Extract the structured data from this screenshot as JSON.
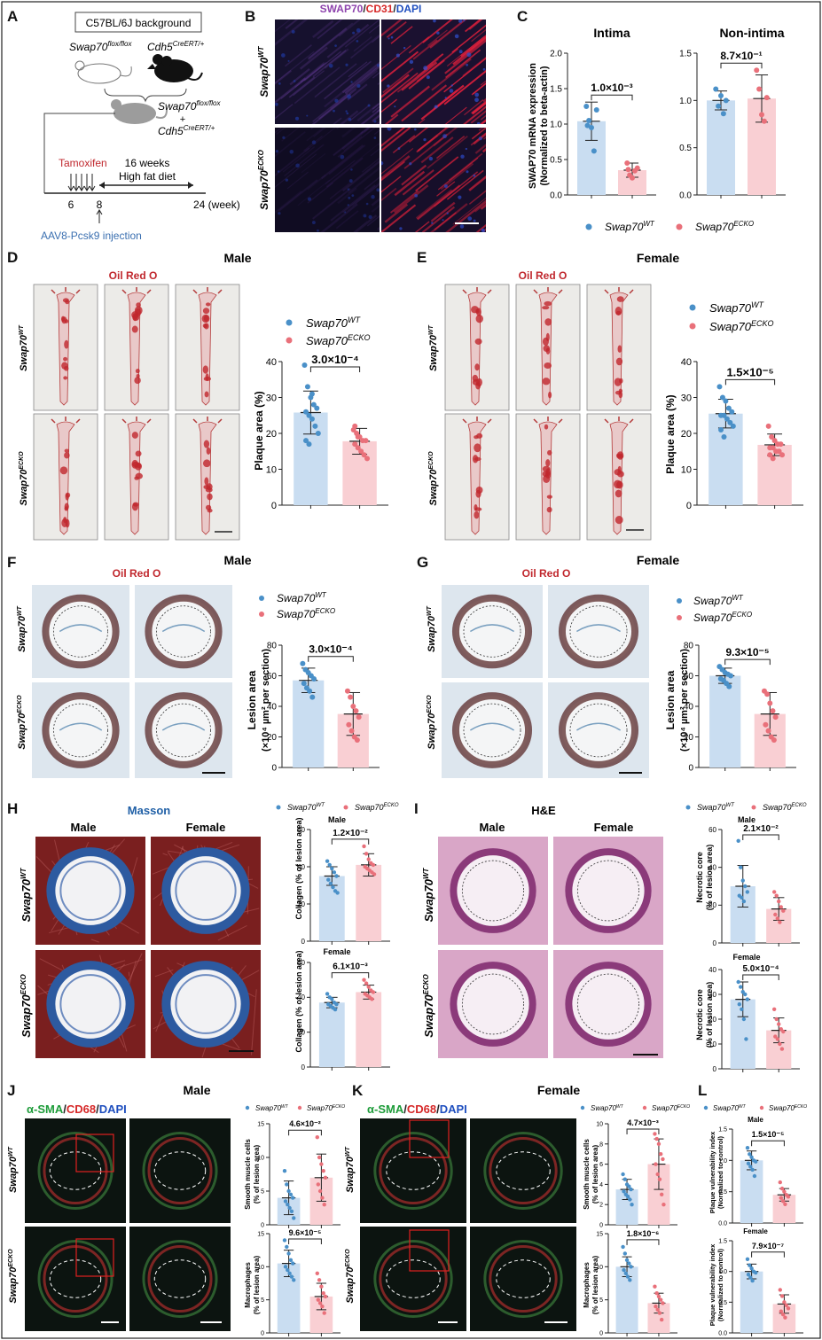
{
  "panels": [
    "A",
    "B",
    "C",
    "D",
    "E",
    "F",
    "G",
    "H",
    "I",
    "J",
    "K",
    "L"
  ],
  "panel_a": {
    "background_box": "C57BL/6J background",
    "mouse1_gene": "Swap70",
    "mouse1_sup": "flox/flox",
    "mouse2_gene": "Cdh5",
    "mouse2_sup": "CreERT/+",
    "cross_gene1": "Swap70",
    "cross_sup1": "flox/flox",
    "plus": "+",
    "cross_gene2": "Cdh5",
    "cross_sup2": "CreERT/+",
    "tamoxifen": "Tamoxifen",
    "weeks_line1": "16 weeks",
    "weeks_line2": "High fat diet",
    "t6": "6",
    "t8": "8",
    "t24": "24 (week)",
    "injection": "AAV8-Pcsk9 injection"
  },
  "panel_b": {
    "title_swap": "SWAP70",
    "slash1": "/",
    "title_cd31": "CD31",
    "slash2": "/",
    "title_dapi": "DAPI",
    "row1": "Swap70",
    "row1_sup": "WT",
    "row2": "Swap70",
    "row2_sup": "ECKO"
  },
  "panel_c": {
    "title_left": "Intima",
    "title_right": "Non-intima",
    "ylabel1": "SWAP70 mRNA expression",
    "ylabel2": "(Normalized to beta-actin)",
    "p_left": "1.0×10⁻³",
    "p_right": "8.7×10⁻¹",
    "legend_wt": "Swap70",
    "legend_wt_sup": "WT",
    "legend_ko": "Swap70",
    "legend_ko_sup": "ECKO"
  },
  "panel_d": {
    "title": "Male",
    "stain": "Oil Red O",
    "row1": "Swap70",
    "row1_sup": "WT",
    "row2": "Swap70",
    "row2_sup": "ECKO",
    "legend_wt": "Swap70",
    "legend_wt_sup": "WT",
    "legend_ko": "Swap70",
    "legend_ko_sup": "ECKO",
    "ylabel": "Plaque area (%)",
    "p": "3.0×10⁻⁴"
  },
  "panel_e": {
    "title": "Female",
    "stain": "Oil Red O",
    "row1": "Swap70",
    "row1_sup": "WT",
    "row2": "Swap70",
    "row2_sup": "ECKO",
    "legend_wt": "Swap70",
    "legend_wt_sup": "WT",
    "legend_ko": "Swap70",
    "legend_ko_sup": "ECKO",
    "ylabel": "Plaque area (%)",
    "p": "1.5×10⁻⁵"
  },
  "panel_f": {
    "title": "Male",
    "stain": "Oil Red O",
    "row1": "Swap70",
    "row1_sup": "WT",
    "row2": "Swap70",
    "row2_sup": "ECKO",
    "legend_wt": "Swap70",
    "legend_wt_sup": "WT",
    "legend_ko": "Swap70",
    "legend_ko_sup": "ECKO",
    "ylabel1": "Lesion area",
    "ylabel2": "(×10⁴ µm² per section)",
    "p": "3.0×10⁻⁴"
  },
  "panel_g": {
    "title": "Female",
    "stain": "Oil Red O",
    "row1": "Swap70",
    "row1_sup": "WT",
    "row2": "Swap70",
    "row2_sup": "ECKO",
    "legend_wt": "Swap70",
    "legend_wt_sup": "WT",
    "legend_ko": "Swap70",
    "legend_ko_sup": "ECKO",
    "ylabel1": "Lesion area",
    "ylabel2": "(×10⁴ µm² per section)",
    "p": "9.3×10⁻⁵"
  },
  "panel_h": {
    "stain": "Masson",
    "col1": "Male",
    "col2": "Female",
    "row1": "Swap70",
    "row1_sup": "WT",
    "row2": "Swap70",
    "row2_sup": "ECKO",
    "legend_wt": "Swap70",
    "legend_wt_sup": "WT",
    "legend_ko": "Swap70",
    "legend_ko_sup": "ECKO",
    "sub1": "Male",
    "sub2": "Female",
    "ylabel": "Collagen (% of lesion area)",
    "p1": "1.2×10⁻²",
    "p2": "6.1×10⁻³"
  },
  "panel_i": {
    "stain": "H&E",
    "col1": "Male",
    "col2": "Female",
    "row1": "Swap70",
    "row1_sup": "WT",
    "row2": "Swap70",
    "row2_sup": "ECKO",
    "legend_wt": "Swap70",
    "legend_wt_sup": "WT",
    "legend_ko": "Swap70",
    "legend_ko_sup": "ECKO",
    "sub1": "Male",
    "sub2": "Female",
    "ylabel1": "Necrotic core",
    "ylabel2": "(% of lesion area)",
    "p1": "2.1×10⁻²",
    "p2": "5.0×10⁻⁴"
  },
  "panel_j": {
    "title": "Male",
    "stain_sma": "α-SMA",
    "slash1": "/",
    "stain_cd68": "CD68",
    "slash2": "/",
    "stain_dapi": "DAPI",
    "row1": "Swap70",
    "row1_sup": "WT",
    "row2": "Swap70",
    "row2_sup": "ECKO",
    "legend_wt": "Swap70",
    "legend_wt_sup": "WT",
    "legend_ko": "Swap70",
    "legend_ko_sup": "ECKO",
    "ylabel_a1": "Smooth muscle cells",
    "ylabel_a2": "(% of lesion area)",
    "ylabel_b1": "Macrophages",
    "ylabel_b2": "(% of lesion area)",
    "p1": "4.6×10⁻²",
    "p2": "9.6×10⁻⁵"
  },
  "panel_k": {
    "title": "Female",
    "stain_sma": "α-SMA",
    "slash1": "/",
    "stain_cd68": "CD68",
    "slash2": "/",
    "stain_dapi": "DAPI",
    "row1": "Swap70",
    "row1_sup": "WT",
    "row2": "Swap70",
    "row2_sup": "ECKO",
    "legend_wt": "Swap70",
    "legend_wt_sup": "WT",
    "legend_ko": "Swap70",
    "legend_ko_sup": "ECKO",
    "ylabel_a1": "Smooth muscle cells",
    "ylabel_a2": "(% of lesion area)",
    "ylabel_b1": "Macrophages",
    "ylabel_b2": "(% of lesion area)",
    "p1": "4.7×10⁻³",
    "p2": "1.8×10⁻⁶"
  },
  "panel_l": {
    "legend_wt": "Swap70",
    "legend_wt_sup": "WT",
    "legend_ko": "Swap70",
    "legend_ko_sup": "ECKO",
    "sub1": "Male",
    "sub2": "Female",
    "ylabel1": "Plaque vulnerability index",
    "ylabel2": "(Normalized to control)",
    "p1": "1.5×10⁻⁵",
    "p2": "7.9×10⁻⁷"
  },
  "colors": {
    "wt": "#4a90c8",
    "ko": "#e9707a",
    "wt_fill": "#c9ddf1",
    "ko_fill": "#f9cfd3"
  },
  "chart_data": [
    {
      "id": "C1",
      "type": "bar",
      "title": "Intima",
      "categories": [
        "Swap70 WT",
        "Swap70 ECKO"
      ],
      "means": [
        1.04,
        0.35
      ],
      "sd": [
        0.27,
        0.1
      ],
      "points": [
        [
          1.25,
          1.05,
          0.95,
          0.62,
          1.2,
          0.98
        ],
        [
          0.45,
          0.28,
          0.24,
          0.34,
          0.38,
          0.36
        ]
      ],
      "ylim": [
        0,
        2.0
      ],
      "yticks": [
        0,
        0.5,
        1.0,
        1.5,
        2.0
      ],
      "tick_labels": [
        "0.0",
        "0.5",
        "1.0",
        "1.5",
        "2.0"
      ],
      "ylabel": "SWAP70 mRNA expression (Normalized to beta-actin)",
      "p": "1.0×10⁻³"
    },
    {
      "id": "C2",
      "type": "bar",
      "title": "Non-intima",
      "categories": [
        "Swap70 WT",
        "Swap70 ECKO"
      ],
      "means": [
        1.0,
        1.02
      ],
      "sd": [
        0.1,
        0.25
      ],
      "points": [
        [
          1.12,
          0.94,
          1.05,
          0.86,
          1.0
        ],
        [
          1.32,
          1.12,
          0.85,
          0.78,
          1.03
        ]
      ],
      "ylim": [
        0,
        1.5
      ],
      "yticks": [
        0,
        0.5,
        1.0,
        1.5
      ],
      "tick_labels": [
        "0.0",
        "0.5",
        "1.0",
        "1.5"
      ],
      "p": "8.7×10⁻¹"
    },
    {
      "id": "D",
      "type": "bar",
      "title": "Male",
      "categories": [
        "Swap70 WT",
        "Swap70 ECKO"
      ],
      "means": [
        25.8,
        17.8
      ],
      "sd": [
        6.0,
        3.6
      ],
      "points": [
        [
          39,
          33,
          30,
          28,
          27,
          26,
          25,
          24,
          22,
          20,
          18,
          17,
          31
        ],
        [
          21,
          20,
          19,
          18,
          18,
          17,
          16,
          15,
          14,
          13,
          22,
          19
        ]
      ],
      "ylim": [
        0,
        40
      ],
      "yticks": [
        0,
        10,
        20,
        30,
        40
      ],
      "tick_labels": [
        "0",
        "10",
        "20",
        "30",
        "40"
      ],
      "ylabel": "Plaque area (%)",
      "p": "3.0×10⁻⁴"
    },
    {
      "id": "E",
      "type": "bar",
      "title": "Female",
      "categories": [
        "Swap70 WT",
        "Swap70 ECKO"
      ],
      "means": [
        25.5,
        16.8
      ],
      "sd": [
        4.0,
        3.0
      ],
      "points": [
        [
          33,
          30,
          29,
          27,
          26,
          25,
          25,
          24,
          23,
          22,
          21,
          19
        ],
        [
          22,
          19,
          18,
          17,
          17,
          16,
          16,
          15,
          15,
          14,
          14,
          13
        ]
      ],
      "ylim": [
        0,
        40
      ],
      "yticks": [
        0,
        10,
        20,
        30,
        40
      ],
      "tick_labels": [
        "0",
        "10",
        "20",
        "30",
        "40"
      ],
      "ylabel": "Plaque area (%)",
      "p": "1.5×10⁻⁵"
    },
    {
      "id": "F",
      "type": "bar",
      "title": "Male",
      "categories": [
        "Swap70 WT",
        "Swap70 ECKO"
      ],
      "means": [
        57,
        35
      ],
      "sd": [
        8,
        14
      ],
      "points": [
        [
          68,
          64,
          62,
          60,
          58,
          55,
          52,
          50,
          46
        ],
        [
          50,
          46,
          40,
          37,
          33,
          28,
          24,
          20,
          18
        ]
      ],
      "ylim": [
        0,
        80
      ],
      "yticks": [
        0,
        20,
        40,
        60,
        80
      ],
      "tick_labels": [
        "0",
        "20",
        "40",
        "60",
        "80"
      ],
      "ylabel": "Lesion area (×10⁴ µm² per section)",
      "p": "3.0×10⁻⁴"
    },
    {
      "id": "G",
      "type": "bar",
      "title": "Female",
      "categories": [
        "Swap70 WT",
        "Swap70 ECKO"
      ],
      "means": [
        60,
        35
      ],
      "sd": [
        5,
        14
      ],
      "points": [
        [
          66,
          64,
          62,
          61,
          60,
          58,
          57,
          55,
          53
        ],
        [
          50,
          48,
          42,
          37,
          33,
          28,
          24,
          20,
          18
        ]
      ],
      "ylim": [
        0,
        80
      ],
      "yticks": [
        0,
        20,
        40,
        60,
        80
      ],
      "tick_labels": [
        "0",
        "20",
        "40",
        "60",
        "80"
      ],
      "ylabel": "Lesion area (×10⁴ µm² per section)",
      "p": "9.3×10⁻⁵"
    },
    {
      "id": "H1",
      "type": "bar",
      "title": "Male",
      "categories": [
        "Swap70 WT",
        "Swap70 ECKO"
      ],
      "means": [
        35,
        41
      ],
      "sd": [
        5,
        6
      ],
      "points": [
        [
          43,
          41,
          39,
          37,
          35,
          33,
          31,
          29,
          27,
          26
        ],
        [
          51,
          47,
          44,
          42,
          41,
          40,
          39,
          38,
          37,
          36
        ]
      ],
      "ylim": [
        0,
        60
      ],
      "yticks": [
        0,
        20,
        40,
        60
      ],
      "tick_labels": [
        "0",
        "20",
        "40",
        "60"
      ],
      "ylabel": "Collagen (% of lesion area)",
      "p": "1.2×10⁻²"
    },
    {
      "id": "H2",
      "type": "bar",
      "title": "Female",
      "categories": [
        "Swap70 WT",
        "Swap70 ECKO"
      ],
      "means": [
        37,
        43
      ],
      "sd": [
        3,
        4
      ],
      "points": [
        [
          42,
          40,
          39,
          37,
          36,
          36,
          35,
          34,
          33
        ],
        [
          50,
          48,
          46,
          44,
          43,
          42,
          41,
          40,
          39
        ]
      ],
      "ylim": [
        0,
        60
      ],
      "yticks": [
        0,
        20,
        40,
        60
      ],
      "tick_labels": [
        "0",
        "20",
        "40",
        "60"
      ],
      "ylabel": "Collagen (% of lesion area)",
      "p": "6.1×10⁻³"
    },
    {
      "id": "I1",
      "type": "bar",
      "title": "Male",
      "categories": [
        "Swap70 WT",
        "Swap70 ECKO"
      ],
      "means": [
        30,
        18
      ],
      "sd": [
        11,
        6
      ],
      "points": [
        [
          54,
          40,
          33,
          30,
          27,
          25,
          24,
          22
        ],
        [
          27,
          25,
          22,
          19,
          17,
          15,
          13,
          11
        ]
      ],
      "ylim": [
        0,
        60
      ],
      "yticks": [
        0,
        20,
        40,
        60
      ],
      "tick_labels": [
        "0",
        "20",
        "40",
        "60"
      ],
      "ylabel": "Necrotic core (% of lesion area)",
      "p": "2.1×10⁻²"
    },
    {
      "id": "I2",
      "type": "bar",
      "title": "Female",
      "categories": [
        "Swap70 WT",
        "Swap70 ECKO"
      ],
      "means": [
        28,
        15.5
      ],
      "sd": [
        7,
        5
      ],
      "points": [
        [
          35,
          33,
          31,
          30,
          28,
          26,
          24,
          20,
          12
        ],
        [
          24,
          20,
          18,
          16,
          15,
          13,
          12,
          10,
          8
        ]
      ],
      "ylim": [
        0,
        40
      ],
      "yticks": [
        0,
        10,
        20,
        30,
        40
      ],
      "tick_labels": [
        "0",
        "10",
        "20",
        "30",
        "40"
      ],
      "ylabel": "Necrotic core (% of lesion area)",
      "p": "5.0×10⁻⁴"
    },
    {
      "id": "J1",
      "type": "bar",
      "title": "Male",
      "categories": [
        "Swap70 WT",
        "Swap70 ECKO"
      ],
      "means": [
        4.0,
        7.0
      ],
      "sd": [
        2.5,
        3.5
      ],
      "points": [
        [
          8,
          6,
          5,
          4.5,
          4,
          3.5,
          3,
          2.5,
          2,
          1
        ],
        [
          13,
          10,
          9,
          8,
          7,
          6,
          5,
          4,
          3
        ]
      ],
      "ylim": [
        0,
        15
      ],
      "yticks": [
        0,
        5,
        10,
        15
      ],
      "tick_labels": [
        "0",
        "5",
        "10",
        "15"
      ],
      "ylabel": "Smooth muscle cells (% of lesion area)",
      "p": "4.6×10⁻²"
    },
    {
      "id": "J2",
      "type": "bar",
      "title": "Male",
      "categories": [
        "Swap70 WT",
        "Swap70 ECKO"
      ],
      "means": [
        10.5,
        5.5
      ],
      "sd": [
        2.0,
        2.0
      ],
      "points": [
        [
          14,
          13,
          12,
          11,
          10.5,
          10,
          9.5,
          9,
          8.5,
          8
        ],
        [
          9,
          8,
          7,
          6,
          5.5,
          5,
          4.5,
          4,
          3
        ]
      ],
      "ylim": [
        0,
        15
      ],
      "yticks": [
        0,
        5,
        10,
        15
      ],
      "tick_labels": [
        "0",
        "5",
        "10",
        "15"
      ],
      "ylabel": "Macrophages (% of lesion area)",
      "p": "9.6×10⁻⁵"
    },
    {
      "id": "K1",
      "type": "bar",
      "title": "Female",
      "categories": [
        "Swap70 WT",
        "Swap70 ECKO"
      ],
      "means": [
        3.5,
        6.0
      ],
      "sd": [
        1.0,
        2.5
      ],
      "points": [
        [
          5,
          4.5,
          4,
          3.8,
          3.5,
          3.3,
          3,
          2.8,
          2.5,
          2
        ],
        [
          9,
          8.5,
          8,
          7,
          6.5,
          6,
          5,
          4.5,
          3,
          2
        ]
      ],
      "ylim": [
        0,
        10
      ],
      "yticks": [
        0,
        2,
        4,
        6,
        8,
        10
      ],
      "tick_labels": [
        "0",
        "2",
        "4",
        "6",
        "8",
        "10"
      ],
      "ylabel": "Smooth muscle cells (% of lesion area)",
      "p": "4.7×10⁻³"
    },
    {
      "id": "K2",
      "type": "bar",
      "title": "Female",
      "categories": [
        "Swap70 WT",
        "Swap70 ECKO"
      ],
      "means": [
        10,
        4.5
      ],
      "sd": [
        1.5,
        1.5
      ],
      "points": [
        [
          13,
          12,
          11,
          10.5,
          10,
          9.5,
          9,
          8.5,
          8
        ],
        [
          7,
          6,
          5.5,
          5,
          4.5,
          4,
          3.5,
          3,
          2
        ]
      ],
      "ylim": [
        0,
        15
      ],
      "yticks": [
        0,
        5,
        10,
        15
      ],
      "tick_labels": [
        "0",
        "5",
        "10",
        "15"
      ],
      "ylabel": "Macrophages (% of lesion area)",
      "p": "1.8×10⁻⁶"
    },
    {
      "id": "L1",
      "type": "bar",
      "title": "Male",
      "categories": [
        "Swap70 WT",
        "Swap70 ECKO"
      ],
      "means": [
        1.0,
        0.45
      ],
      "sd": [
        0.15,
        0.1
      ],
      "points": [
        [
          1.2,
          1.1,
          1.05,
          1.0,
          0.98,
          0.95,
          0.9,
          0.85,
          0.75
        ],
        [
          0.65,
          0.55,
          0.5,
          0.45,
          0.42,
          0.4,
          0.35,
          0.3
        ]
      ],
      "ylim": [
        0,
        1.5
      ],
      "yticks": [
        0,
        0.5,
        1.0,
        1.5
      ],
      "tick_labels": [
        "0.0",
        "0.5",
        "1.0",
        "1.5"
      ],
      "ylabel": "Plaque vulnerability index (Normalized to control)",
      "p": "1.5×10⁻⁵"
    },
    {
      "id": "L2",
      "type": "bar",
      "title": "Female",
      "categories": [
        "Swap70 WT",
        "Swap70 ECKO"
      ],
      "means": [
        1.0,
        0.47
      ],
      "sd": [
        0.12,
        0.15
      ],
      "points": [
        [
          1.2,
          1.1,
          1.05,
          1.0,
          0.98,
          0.95,
          0.9,
          0.85
        ],
        [
          0.7,
          0.6,
          0.5,
          0.45,
          0.4,
          0.35,
          0.3,
          0.25
        ]
      ],
      "ylim": [
        0,
        1.5
      ],
      "yticks": [
        0,
        0.5,
        1.0,
        1.5
      ],
      "tick_labels": [
        "0.0",
        "0.5",
        "1.0",
        "1.5"
      ],
      "ylabel": "Plaque vulnerability index (Normalized to control)",
      "p": "7.9×10⁻⁷"
    }
  ]
}
